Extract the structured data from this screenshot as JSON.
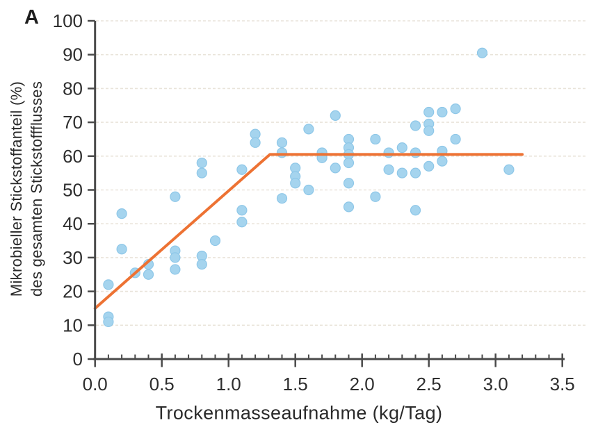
{
  "figure": {
    "panel_label": "A"
  },
  "chart_data": {
    "type": "scatter",
    "title": "",
    "panel_label": "A",
    "xlabel": "Trockenmasseaufnahme (kg/Tag)",
    "ylabel_lines": [
      "Mikrobieller Stickstoffanteil (%)",
      "des gesamten Stickstoffflusses"
    ],
    "xlim": [
      0,
      3.5
    ],
    "ylim": [
      0,
      100
    ],
    "x_major_tick_step": 0.5,
    "x_minor_tick_step": 0.1,
    "y_major_tick_step": 10,
    "x_tick_labels": [
      "0.0",
      "0.5",
      "1.0",
      "1.5",
      "2.0",
      "2.5",
      "3.0",
      "3.5"
    ],
    "y_tick_labels": [
      "0",
      "10",
      "20",
      "30",
      "40",
      "50",
      "60",
      "70",
      "80",
      "90",
      "100"
    ],
    "grid": {
      "horizontal_at": [
        10,
        20,
        30,
        40,
        50,
        60,
        70,
        80,
        90,
        100
      ],
      "style": "dashed"
    },
    "legend": "none",
    "points": [
      [
        0.1,
        22
      ],
      [
        0.1,
        12.5
      ],
      [
        0.1,
        11
      ],
      [
        0.2,
        43
      ],
      [
        0.2,
        32.5
      ],
      [
        0.3,
        25.5
      ],
      [
        0.4,
        28
      ],
      [
        0.4,
        25
      ],
      [
        0.6,
        48
      ],
      [
        0.6,
        32
      ],
      [
        0.6,
        30
      ],
      [
        0.6,
        26.5
      ],
      [
        0.8,
        58
      ],
      [
        0.8,
        55
      ],
      [
        0.8,
        30.5
      ],
      [
        0.8,
        28
      ],
      [
        0.9,
        35
      ],
      [
        1.1,
        56
      ],
      [
        1.1,
        44
      ],
      [
        1.1,
        40.5
      ],
      [
        1.2,
        66.5
      ],
      [
        1.2,
        64
      ],
      [
        1.4,
        64
      ],
      [
        1.4,
        61
      ],
      [
        1.4,
        47.5
      ],
      [
        1.5,
        56.5
      ],
      [
        1.5,
        54
      ],
      [
        1.5,
        52
      ],
      [
        1.6,
        68
      ],
      [
        1.6,
        50
      ],
      [
        1.7,
        61
      ],
      [
        1.7,
        59.5
      ],
      [
        1.8,
        72
      ],
      [
        1.8,
        56.5
      ],
      [
        1.9,
        65
      ],
      [
        1.9,
        62.5
      ],
      [
        1.9,
        60.5
      ],
      [
        1.9,
        58
      ],
      [
        1.9,
        52
      ],
      [
        1.9,
        45
      ],
      [
        2.1,
        65
      ],
      [
        2.1,
        48
      ],
      [
        2.2,
        61
      ],
      [
        2.2,
        56
      ],
      [
        2.3,
        62.5
      ],
      [
        2.3,
        55
      ],
      [
        2.4,
        69
      ],
      [
        2.4,
        61
      ],
      [
        2.4,
        55
      ],
      [
        2.4,
        44
      ],
      [
        2.5,
        73
      ],
      [
        2.5,
        69.5
      ],
      [
        2.5,
        67.5
      ],
      [
        2.5,
        57
      ],
      [
        2.6,
        73
      ],
      [
        2.6,
        61.5
      ],
      [
        2.6,
        58.5
      ],
      [
        2.7,
        74
      ],
      [
        2.7,
        65
      ],
      [
        2.9,
        90.5
      ],
      [
        3.1,
        56
      ]
    ],
    "fit_line": {
      "shape": "broken-stick",
      "vertices": [
        [
          0,
          15
        ],
        [
          1.31,
          60.5
        ],
        [
          3.2,
          60.5
        ]
      ]
    },
    "colors": {
      "point_fill": "#a5d4ee",
      "point_edge": "#8ec7e8",
      "fit_line": "#ed7233",
      "axis": "#4a4a4a",
      "grid": "#e9e4da",
      "text": "#2e2e2e"
    }
  }
}
